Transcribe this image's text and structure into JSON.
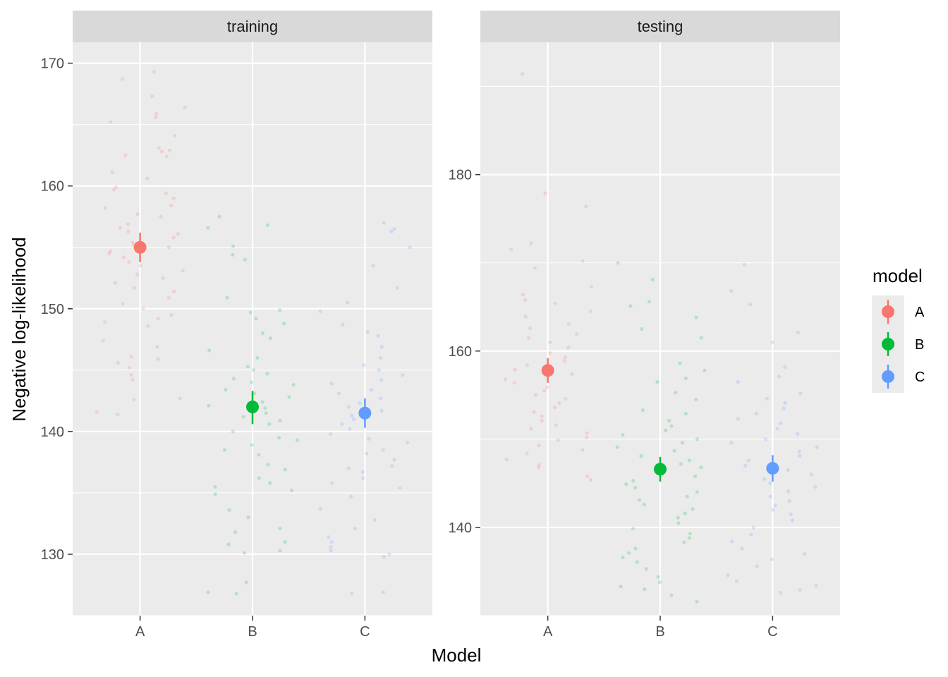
{
  "chart_data": {
    "type": "scatter",
    "xlabel": "Model",
    "ylabel": "Negative log-likelihood",
    "categories": [
      "A",
      "B",
      "C"
    ],
    "colors": {
      "A": "#F8766D",
      "B": "#00BA38",
      "C": "#619CFF"
    },
    "grid": true,
    "legend": {
      "title": "model",
      "placement": "right",
      "entries": [
        "A",
        "B",
        "C"
      ]
    },
    "panels": [
      {
        "strip": "training",
        "ylim": [
          125,
          171.7
        ],
        "yticks": [
          130,
          140,
          150,
          160,
          170
        ],
        "summary": [
          {
            "model": "A",
            "mean": 155.0,
            "lower": 153.8,
            "upper": 156.2
          },
          {
            "model": "B",
            "mean": 142.0,
            "lower": 140.6,
            "upper": 143.3
          },
          {
            "model": "C",
            "mean": 141.5,
            "lower": 140.3,
            "upper": 142.7
          }
        ],
        "points": {
          "A": [
            169.3,
            168.7,
            167.3,
            166.4,
            165.9,
            165.6,
            165.2,
            164.1,
            163.1,
            162.9,
            162.8,
            162.5,
            162.4,
            161.1,
            160.6,
            159.9,
            159.7,
            159.4,
            159.0,
            158.4,
            158.2,
            157.7,
            157.5,
            156.9,
            156.6,
            156.3,
            156.1,
            155.8,
            155.4,
            155.2,
            155.0,
            154.7,
            154.5,
            154.2,
            153.8,
            153.5,
            153.1,
            152.8,
            152.5,
            152.1,
            151.7,
            151.4,
            150.9,
            150.4,
            150.0,
            149.5,
            149.2,
            148.9,
            148.6,
            147.4,
            146.9,
            146.1,
            145.9,
            145.6,
            145.2,
            144.6,
            144.2,
            142.7,
            142.6,
            141.6,
            141.4
          ],
          "B": [
            157.5,
            156.8,
            156.6,
            155.1,
            154.4,
            154.0,
            150.9,
            149.9,
            149.7,
            149.2,
            148.8,
            148.0,
            147.6,
            146.6,
            146.0,
            145.3,
            145.0,
            144.7,
            144.3,
            144.0,
            143.8,
            143.4,
            143.1,
            142.8,
            142.4,
            142.1,
            141.9,
            141.5,
            141.2,
            140.9,
            140.6,
            140.0,
            139.5,
            139.3,
            138.9,
            138.5,
            138.1,
            137.3,
            136.9,
            136.2,
            135.8,
            135.5,
            135.2,
            134.9,
            133.6,
            133.0,
            132.1,
            131.8,
            131.0,
            130.8,
            130.3,
            130.1,
            127.7,
            126.9,
            126.8
          ],
          "C": [
            157.0,
            156.5,
            156.3,
            155.0,
            153.5,
            151.7,
            150.5,
            149.8,
            148.7,
            148.1,
            147.8,
            146.9,
            146.0,
            145.4,
            145.0,
            144.6,
            144.2,
            143.9,
            143.4,
            143.1,
            142.7,
            142.3,
            142.0,
            141.7,
            141.3,
            141.0,
            140.6,
            140.2,
            139.8,
            139.4,
            139.1,
            138.5,
            138.2,
            137.7,
            137.2,
            137.0,
            136.7,
            136.2,
            135.8,
            135.4,
            134.7,
            133.7,
            132.8,
            132.1,
            131.4,
            131.0,
            130.6,
            130.3,
            130.0,
            129.8,
            126.9,
            126.8
          ]
        }
      },
      {
        "strip": "testing",
        "ylim": [
          130,
          195
        ],
        "yticks": [
          140,
          160,
          180
        ],
        "summary": [
          {
            "model": "A",
            "mean": 157.8,
            "lower": 156.4,
            "upper": 159.2
          },
          {
            "model": "B",
            "mean": 146.6,
            "lower": 145.2,
            "upper": 148.0
          },
          {
            "model": "C",
            "mean": 146.7,
            "lower": 145.2,
            "upper": 148.2
          }
        ],
        "points": {
          "A": [
            191.4,
            177.9,
            176.4,
            172.2,
            171.5,
            170.2,
            169.4,
            167.3,
            166.4,
            165.8,
            165.4,
            164.5,
            163.9,
            163.1,
            162.6,
            161.9,
            161.5,
            161.0,
            160.4,
            159.8,
            159.3,
            158.9,
            158.4,
            157.9,
            157.4,
            156.8,
            156.4,
            155.9,
            155.5,
            155.0,
            154.6,
            154.1,
            153.6,
            153.1,
            152.6,
            152.1,
            151.6,
            151.2,
            150.7,
            150.2,
            149.9,
            149.3,
            148.8,
            148.4,
            147.7,
            147.1,
            146.8,
            145.8,
            145.4
          ],
          "B": [
            170.0,
            168.1,
            165.6,
            165.1,
            163.8,
            162.5,
            161.5,
            158.6,
            157.8,
            156.9,
            156.5,
            155.3,
            154.5,
            153.3,
            152.9,
            152.1,
            151.5,
            151.0,
            150.5,
            150.0,
            149.6,
            149.1,
            148.7,
            148.1,
            147.6,
            147.2,
            146.8,
            146.3,
            145.8,
            145.3,
            144.9,
            144.5,
            144.0,
            143.5,
            143.1,
            142.6,
            142.1,
            141.6,
            141.1,
            140.5,
            139.9,
            139.3,
            138.8,
            138.3,
            137.6,
            137.1,
            136.6,
            136.1,
            135.3,
            134.4,
            133.8,
            133.3,
            133.0,
            132.3,
            131.6
          ],
          "C": [
            169.8,
            166.8,
            165.3,
            162.1,
            161.0,
            158.2,
            157.1,
            156.5,
            155.2,
            154.6,
            154.1,
            153.5,
            152.9,
            152.3,
            151.8,
            151.2,
            150.6,
            150.0,
            149.6,
            149.1,
            148.6,
            148.1,
            147.6,
            147.0,
            146.5,
            146.0,
            145.5,
            145.0,
            144.6,
            144.1,
            143.5,
            143.0,
            142.5,
            142.0,
            141.5,
            140.8,
            140.0,
            139.2,
            138.4,
            137.6,
            137.0,
            136.4,
            135.6,
            134.6,
            133.9,
            133.4,
            132.9,
            132.6
          ]
        }
      }
    ]
  }
}
